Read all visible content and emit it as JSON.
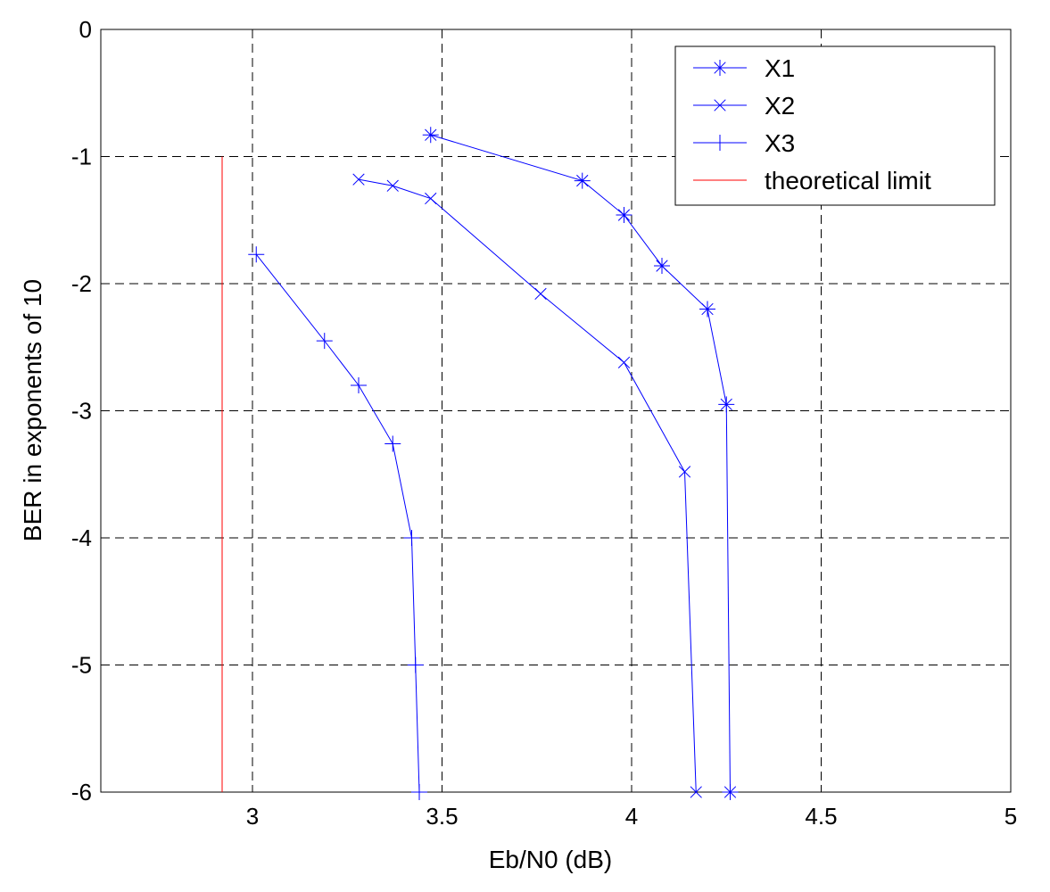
{
  "chart_data": {
    "type": "line",
    "x_label": "Eb/N0 (dB)",
    "y_label": "BER in exponents of 10",
    "xlim": [
      2.6,
      5
    ],
    "xticks": [
      3,
      3.5,
      4,
      4.5,
      5
    ],
    "ylim": [
      -6,
      0
    ],
    "yticks": [
      0,
      -1,
      -2,
      -3,
      -4,
      -5,
      -6
    ],
    "grid": true,
    "legend": "upper right",
    "series": [
      {
        "name": "X1",
        "color": "#0000ff",
        "marker": "asterisk",
        "x": [
          3.47,
          3.87,
          3.98,
          4.08,
          4.2,
          4.25,
          4.26
        ],
        "values": [
          -0.83,
          -1.19,
          -1.46,
          -1.86,
          -2.2,
          -2.95,
          -6
        ]
      },
      {
        "name": "X2",
        "color": "#0000ff",
        "marker": "x",
        "x": [
          3.28,
          3.37,
          3.47,
          3.76,
          3.98,
          4.14,
          4.17
        ],
        "values": [
          -1.18,
          -1.23,
          -1.33,
          -2.08,
          -2.62,
          -3.48,
          -6
        ]
      },
      {
        "name": "X3",
        "color": "#0000ff",
        "marker": "plus",
        "x": [
          3.01,
          3.19,
          3.28,
          3.37,
          3.42,
          3.43,
          3.44
        ],
        "values": [
          -1.77,
          -2.45,
          -2.8,
          -3.26,
          -4,
          -5,
          -6
        ]
      },
      {
        "name": "theoretical limit",
        "color": "#ff0000",
        "marker": "none",
        "x": [
          2.92,
          2.92
        ],
        "values": [
          -1,
          -6
        ]
      }
    ]
  }
}
